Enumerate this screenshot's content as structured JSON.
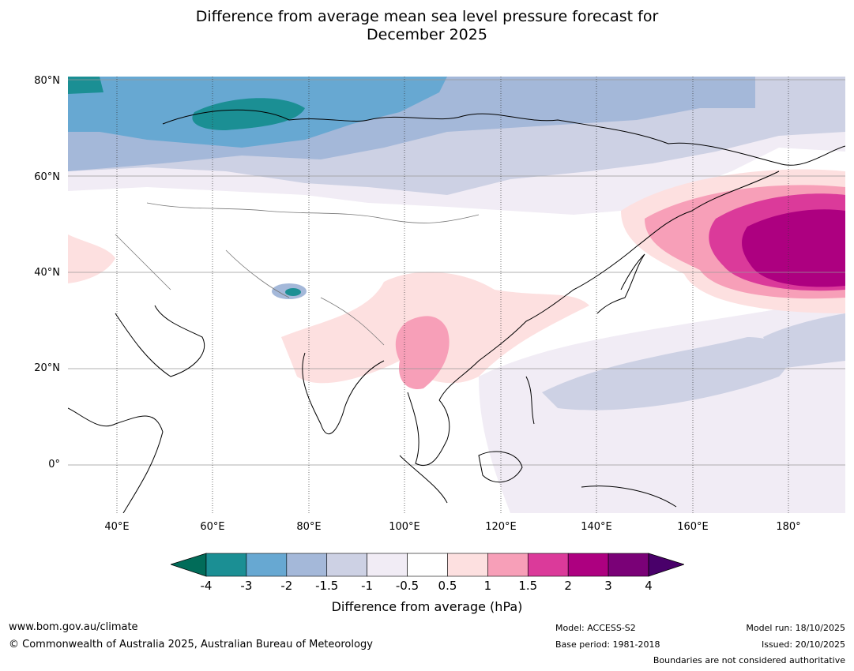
{
  "title_line1": "Difference from average mean sea level pressure forecast for",
  "title_line2": "December 2025",
  "map": {
    "lat_labels": [
      "80°N",
      "60°N",
      "40°N",
      "20°N",
      "0°"
    ],
    "lon_labels": [
      "40°E",
      "60°E",
      "80°E",
      "100°E",
      "120°E",
      "140°E",
      "160°E",
      "180°"
    ]
  },
  "colorbar": {
    "ticks": [
      "-4",
      "-3",
      "-2",
      "-1.5",
      "-1",
      "-0.5",
      "0.5",
      "1",
      "1.5",
      "2",
      "3",
      "4"
    ],
    "colors": [
      "#1b8f94",
      "#67a8d2",
      "#a4b8d9",
      "#cdd1e4",
      "#f1ecf5",
      "#ffffff",
      "#fde0e0",
      "#f79fb8",
      "#db3a9a",
      "#ad0080",
      "#7a0177"
    ],
    "under_color": "#016c59",
    "over_color": "#49006a",
    "label": "Difference from average (hPa)"
  },
  "footer": {
    "website": "www.bom.gov.au/climate",
    "copyright": "© Commonwealth of Australia 2025, Australian Bureau of Meteorology",
    "model": "Model: ACCESS-S2",
    "base_period": "Base period: 1981-2018",
    "model_run": "Model run: 18/10/2025",
    "issued": "Issued: 20/10/2025",
    "disclaimer": "Boundaries are not considered authoritative"
  }
}
